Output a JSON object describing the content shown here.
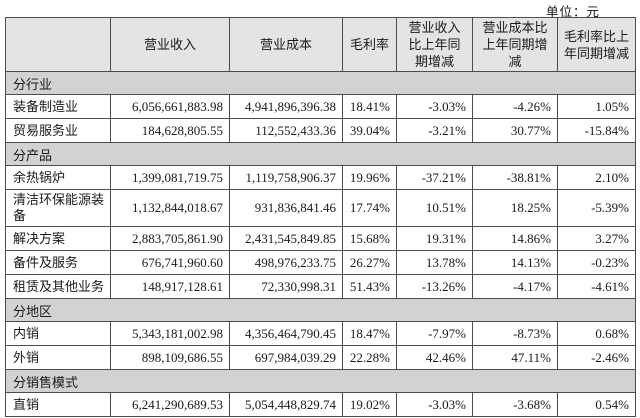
{
  "unit_label": "单位：元",
  "colors": {
    "header_bg": "#e4e4e4",
    "section_bg": "#d2d2d2",
    "border": "#4d4d4d",
    "text": "#1a1a1a",
    "page_bg": "#ffffff"
  },
  "table": {
    "columns": [
      "",
      "营业收入",
      "营业成本",
      "毛利率",
      "营业收入比上年同期增减",
      "营业成本比上年同期增减",
      "毛利率比上年同期增减"
    ],
    "rows": [
      {
        "type": "section",
        "label": "分行业"
      },
      {
        "type": "data",
        "label": "装备制造业",
        "values": [
          "6,056,661,883.98",
          "4,941,896,396.38",
          "18.41%",
          "-3.03%",
          "-4.26%",
          "1.05%"
        ]
      },
      {
        "type": "data",
        "label": "贸易服务业",
        "values": [
          "184,628,805.55",
          "112,552,433.36",
          "39.04%",
          "-3.21%",
          "30.77%",
          "-15.84%"
        ]
      },
      {
        "type": "section",
        "label": "分产品"
      },
      {
        "type": "data",
        "label": "余热锅炉",
        "values": [
          "1,399,081,719.75",
          "1,119,758,906.37",
          "19.96%",
          "-37.21%",
          "-38.81%",
          "2.10%"
        ]
      },
      {
        "type": "data",
        "label": "清洁环保能源装备",
        "values": [
          "1,132,844,018.67",
          "931,836,841.46",
          "17.74%",
          "10.51%",
          "18.25%",
          "-5.39%"
        ]
      },
      {
        "type": "data",
        "label": "解决方案",
        "values": [
          "2,883,705,861.90",
          "2,431,545,849.85",
          "15.68%",
          "19.31%",
          "14.86%",
          "3.27%"
        ]
      },
      {
        "type": "data",
        "label": "备件及服务",
        "values": [
          "676,741,960.60",
          "498,976,233.75",
          "26.27%",
          "13.78%",
          "14.13%",
          "-0.23%"
        ]
      },
      {
        "type": "data",
        "label": "租赁及其他业务",
        "values": [
          "148,917,128.61",
          "72,330,998.31",
          "51.43%",
          "-13.26%",
          "-4.17%",
          "-4.61%"
        ]
      },
      {
        "type": "section",
        "label": "分地区"
      },
      {
        "type": "data",
        "label": "内销",
        "values": [
          "5,343,181,002.98",
          "4,356,464,790.45",
          "18.47%",
          "-7.97%",
          "-8.73%",
          "0.68%"
        ]
      },
      {
        "type": "data",
        "label": "外销",
        "values": [
          "898,109,686.55",
          "697,984,039.29",
          "22.28%",
          "42.46%",
          "47.11%",
          "-2.46%"
        ]
      },
      {
        "type": "section",
        "label": "分销售模式"
      },
      {
        "type": "data",
        "label": "直销",
        "values": [
          "6,241,290,689.53",
          "5,054,448,829.74",
          "19.02%",
          "-3.03%",
          "-3.68%",
          "0.54%"
        ]
      }
    ]
  }
}
